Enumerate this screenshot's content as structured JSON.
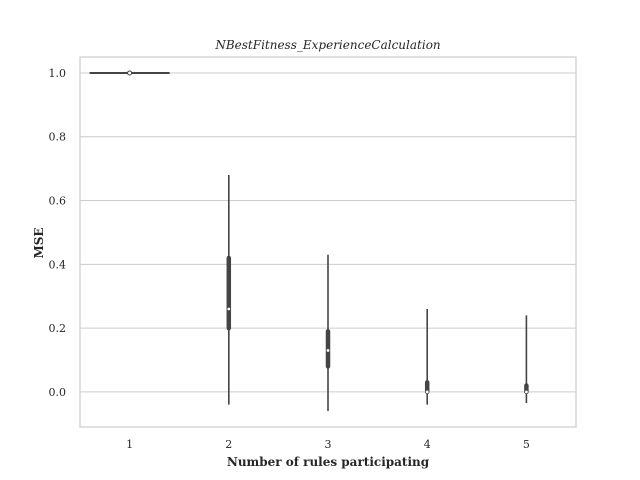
{
  "chart_data": {
    "type": "violin",
    "title": "NBestFitness_ExperienceCalculation",
    "xlabel": "Number of rules participating",
    "ylabel": "MSE",
    "categories": [
      "1",
      "2",
      "3",
      "4",
      "5"
    ],
    "ylim": [
      -0.11,
      1.05
    ],
    "yticks": [
      "0.0",
      "0.2",
      "0.4",
      "0.6",
      "0.8",
      "1.0"
    ],
    "grid": "horizontal",
    "color": "#444444",
    "distributions": [
      {
        "category": "1",
        "min": 1.0,
        "q1": 1.0,
        "median": 1.0,
        "q3": 1.0,
        "max": 1.0,
        "flat": true
      },
      {
        "category": "2",
        "min": -0.04,
        "q1": 0.2,
        "median": 0.26,
        "q3": 0.42,
        "max": 0.68
      },
      {
        "category": "3",
        "min": -0.06,
        "q1": 0.08,
        "median": 0.13,
        "q3": 0.19,
        "max": 0.43
      },
      {
        "category": "4",
        "min": -0.04,
        "q1": 0.0,
        "median": 0.0,
        "q3": 0.03,
        "max": 0.26
      },
      {
        "category": "5",
        "min": -0.035,
        "q1": 0.0,
        "median": 0.0,
        "q3": 0.02,
        "max": 0.24
      }
    ]
  }
}
